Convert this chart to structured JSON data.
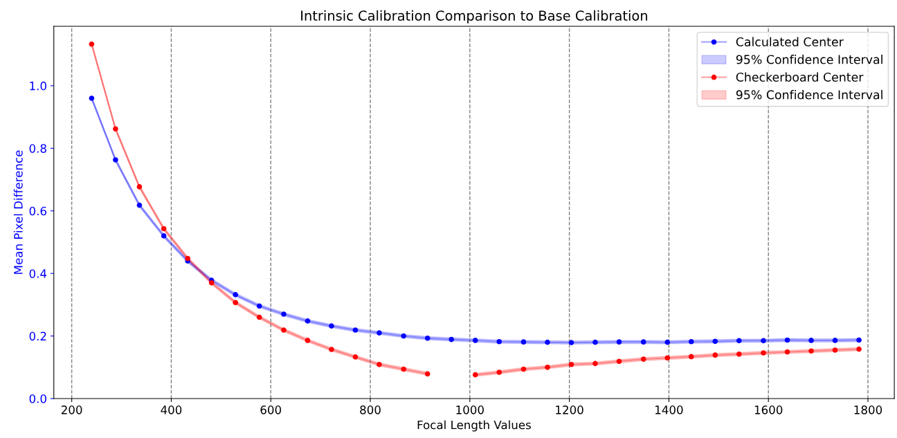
{
  "chart_data": {
    "type": "line",
    "title": "Intrinsic Calibration Comparison to Base Calibration",
    "xlabel": "Focal Length Values",
    "ylabel": "Mean Pixel Difference",
    "x": [
      240,
      288,
      336,
      385,
      433,
      481,
      529,
      577,
      626,
      674,
      722,
      770,
      818,
      867,
      915,
      963,
      1011,
      1059,
      1108,
      1156,
      1204,
      1252,
      1300,
      1349,
      1397,
      1445,
      1493,
      1541,
      1590,
      1638,
      1686,
      1734,
      1782
    ],
    "series": [
      {
        "name": "Calculated Center",
        "color": "#0000ff",
        "values": [
          0.96,
          0.763,
          0.618,
          0.52,
          0.44,
          0.378,
          0.332,
          0.296,
          0.27,
          0.248,
          0.232,
          0.219,
          0.21,
          0.2,
          0.193,
          0.189,
          0.186,
          0.182,
          0.181,
          0.18,
          0.179,
          0.18,
          0.181,
          0.181,
          0.18,
          0.182,
          0.183,
          0.185,
          0.185,
          0.187,
          0.186,
          0.186,
          0.187
        ]
      },
      {
        "name": "95% Confidence Interval",
        "type": "area",
        "color": "#0000ff",
        "values": [
          null,
          null,
          null,
          null,
          null,
          null,
          null,
          null,
          null,
          null,
          null,
          null,
          null,
          null,
          null,
          null,
          null,
          null,
          null,
          null,
          null,
          null,
          null,
          null,
          null,
          null,
          null,
          null,
          null,
          null,
          null,
          null,
          null
        ],
        "lower": [
          0.955,
          0.758,
          0.613,
          0.515,
          0.435,
          0.373,
          0.327,
          0.291,
          0.265,
          0.243,
          0.227,
          0.214,
          0.205,
          0.195,
          0.188,
          0.184,
          0.181,
          0.177,
          0.176,
          0.175,
          0.174,
          0.175,
          0.176,
          0.176,
          0.175,
          0.177,
          0.178,
          0.18,
          0.18,
          0.182,
          0.181,
          0.181,
          0.182
        ],
        "upper": [
          0.965,
          0.768,
          0.623,
          0.525,
          0.445,
          0.383,
          0.337,
          0.301,
          0.275,
          0.253,
          0.237,
          0.224,
          0.215,
          0.205,
          0.198,
          0.194,
          0.191,
          0.187,
          0.186,
          0.185,
          0.184,
          0.185,
          0.186,
          0.186,
          0.185,
          0.187,
          0.188,
          0.19,
          0.19,
          0.192,
          0.191,
          0.191,
          0.192
        ]
      },
      {
        "name": "Checkerboard Center",
        "color": "#ff0000",
        "values": [
          1.133,
          0.862,
          0.677,
          0.543,
          0.448,
          0.37,
          0.307,
          0.26,
          0.219,
          0.186,
          0.157,
          0.133,
          0.109,
          0.094,
          0.079,
          null,
          0.076,
          0.084,
          0.094,
          0.1,
          0.109,
          0.112,
          0.119,
          0.126,
          0.13,
          0.134,
          0.139,
          0.142,
          0.146,
          0.149,
          0.152,
          0.155,
          0.158
        ]
      },
      {
        "name": "95% Confidence Interval",
        "type": "area",
        "color": "#ff0000",
        "values": [
          null,
          null,
          null,
          null,
          null,
          null,
          null,
          null,
          null,
          null,
          null,
          null,
          null,
          null,
          null,
          null,
          null,
          null,
          null,
          null,
          null,
          null,
          null,
          null,
          null,
          null,
          null,
          null,
          null,
          null,
          null,
          null,
          null
        ],
        "lower": [
          1.128,
          0.857,
          0.672,
          0.538,
          0.443,
          0.365,
          0.302,
          0.255,
          0.214,
          0.181,
          0.152,
          0.128,
          0.104,
          0.089,
          0.074,
          null,
          0.071,
          0.079,
          0.089,
          0.095,
          0.104,
          0.107,
          0.114,
          0.121,
          0.125,
          0.129,
          0.134,
          0.137,
          0.141,
          0.144,
          0.147,
          0.15,
          0.153
        ],
        "upper": [
          1.138,
          0.867,
          0.682,
          0.548,
          0.453,
          0.375,
          0.312,
          0.265,
          0.224,
          0.191,
          0.162,
          0.138,
          0.114,
          0.099,
          0.084,
          null,
          0.081,
          0.089,
          0.099,
          0.105,
          0.114,
          0.117,
          0.124,
          0.131,
          0.135,
          0.139,
          0.144,
          0.147,
          0.151,
          0.154,
          0.157,
          0.16,
          0.163
        ]
      }
    ],
    "xlim": [
      164,
      1853
    ],
    "ylim": [
      0,
      1.19
    ],
    "xticks": [
      200,
      400,
      600,
      800,
      1000,
      1200,
      1400,
      1600,
      1800
    ],
    "yticks": [
      {
        "value": 0,
        "label": "0.0"
      },
      {
        "value": 0.2,
        "label": "0.2"
      },
      {
        "value": 0.4,
        "label": "0.4"
      },
      {
        "value": 0.6,
        "label": "0.6"
      },
      {
        "value": 0.8,
        "label": "0.8"
      },
      {
        "value": 1.0,
        "label": "1.0"
      }
    ],
    "grid": "x",
    "legend": "top right",
    "marker": "circle",
    "line_style": "solid"
  }
}
